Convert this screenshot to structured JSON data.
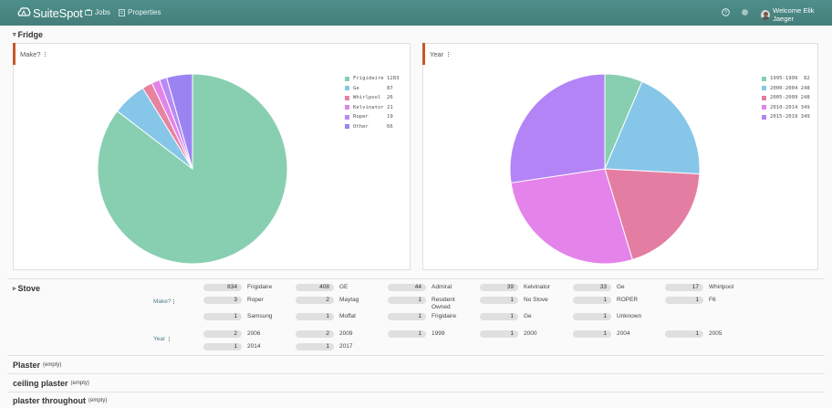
{
  "header": {
    "logo_text": "SuiteSpot",
    "nav": [
      {
        "label": "Jobs",
        "icon": "briefcase-icon"
      },
      {
        "label": "Properties",
        "icon": "building-icon"
      }
    ],
    "help_icon": "help-icon",
    "settings_icon": "gear-icon",
    "welcome": "Welcome Elik Jaeger"
  },
  "fridge": {
    "title": "Fridge",
    "make_chart": {
      "label": "Make?",
      "chart_data": {
        "type": "pie",
        "title": "",
        "categories": [
          "Frigidaire",
          "Ge",
          "Whirlpool",
          "Kelvinator",
          "Roper",
          "Other"
        ],
        "values": [
          1283,
          87,
          26,
          21,
          19,
          66
        ],
        "legend_labels": [
          "Frigidaire 1283",
          "Ge         87",
          "Whirlpool  26",
          "Kelvinator 21",
          "Roper      19",
          "Other      66"
        ],
        "colors": [
          "#88cfb2",
          "#86c6e8",
          "#e7839f",
          "#e483ea",
          "#b98af5",
          "#9b84f2"
        ],
        "legend": "right"
      }
    },
    "year_chart": {
      "label": "Year",
      "chart_data": {
        "type": "pie",
        "title": "",
        "categories": [
          "1995-1999",
          "2000-2004",
          "2005-2009",
          "2010-2014",
          "2015-2019"
        ],
        "values": [
          82,
          248,
          248,
          349,
          349
        ],
        "legend_labels": [
          "1995-1999  82",
          "2000-2004 248",
          "2005-2009 248",
          "2010-2014 349",
          "2015-2019 349"
        ],
        "colors": [
          "#88cfb2",
          "#86c6e8",
          "#e37ea2",
          "#e483ea",
          "#b284f5"
        ],
        "legend": "right"
      }
    }
  },
  "stove": {
    "title": "Stove",
    "make_label": "Make?",
    "year_label": "Year",
    "make_rows": [
      [
        [
          "834",
          "Frigidaire"
        ],
        [
          "408",
          "GE"
        ],
        [
          "44",
          "Admiral"
        ],
        [
          "39",
          "Kelvinator"
        ],
        [
          "33",
          "Ge"
        ],
        [
          "17",
          "Whirlpool"
        ]
      ],
      [
        [
          "3",
          "Roper"
        ],
        [
          "2",
          "Maytag"
        ],
        [
          "1",
          "Resident Owned"
        ],
        [
          "1",
          "No Stove"
        ],
        [
          "1",
          "ROPER"
        ],
        [
          "1",
          "F6"
        ]
      ],
      [
        [
          "1",
          "Samsung"
        ],
        [
          "1",
          "Moffat"
        ],
        [
          "1",
          "Frigidaire"
        ],
        [
          "1",
          "Ge"
        ],
        [
          "1",
          "Unknown"
        ]
      ]
    ],
    "year_rows": [
      [
        [
          "2",
          "2006"
        ],
        [
          "2",
          "2009"
        ],
        [
          "1",
          "1999"
        ],
        [
          "1",
          "2000"
        ],
        [
          "1",
          "2004"
        ],
        [
          "1",
          "2005"
        ]
      ],
      [
        [
          "1",
          "2014"
        ],
        [
          "1",
          "2017"
        ]
      ]
    ]
  },
  "sections": [
    {
      "title": "Plaster",
      "note": "(empty)"
    },
    {
      "title": "ceiling plaster",
      "note": "(empty)"
    },
    {
      "title": "plaster throughout",
      "note": "(empty)"
    }
  ]
}
